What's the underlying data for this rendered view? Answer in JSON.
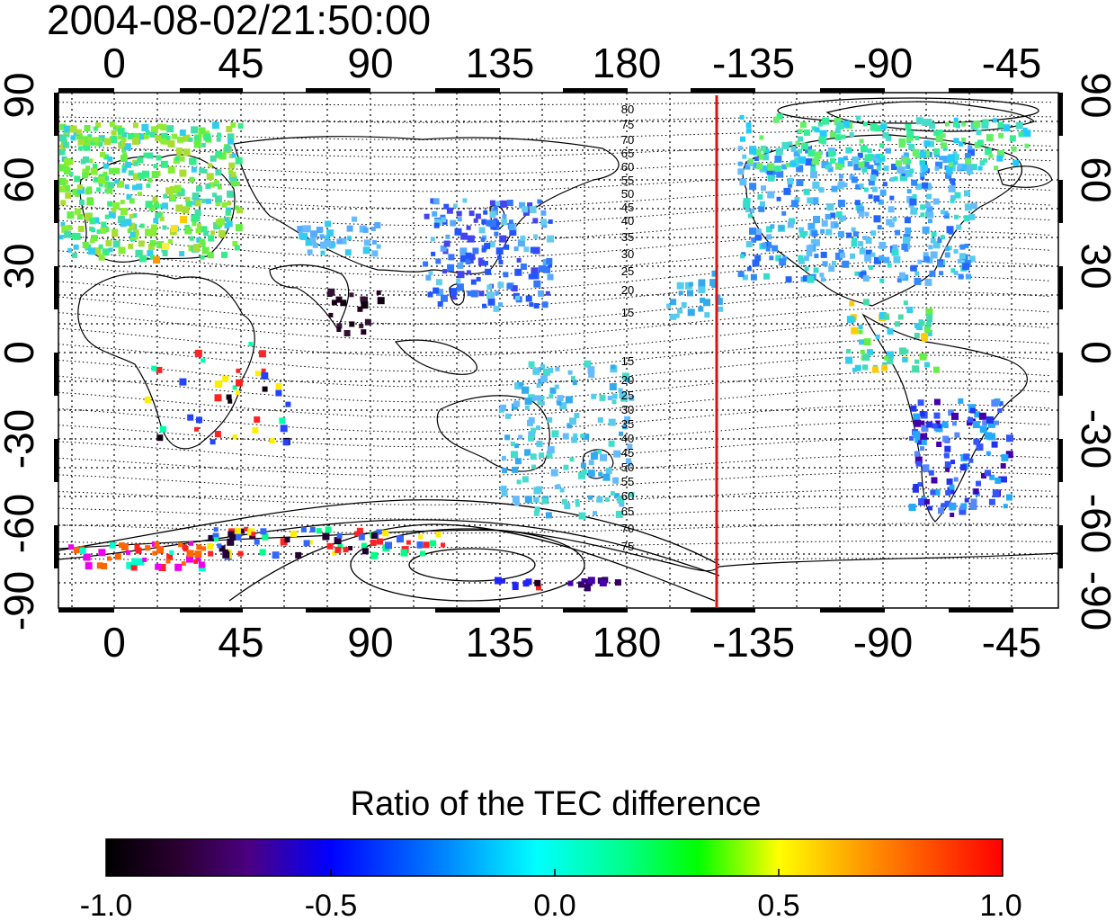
{
  "map": {
    "title": "2004-08-02/21:50:00",
    "top_lon_labels": [
      "0",
      "45",
      "90",
      "135",
      "180",
      "-135",
      "-90",
      "-45"
    ],
    "bottom_lon_labels": [
      "0",
      "45",
      "90",
      "135",
      "180",
      "-135",
      "-90",
      "-45"
    ],
    "left_lat_labels": [
      "90",
      "60",
      "30",
      "0",
      "-30",
      "-60",
      "-90"
    ],
    "right_lat_labels": [
      "90",
      "60",
      "30",
      "0",
      "-30",
      "-60",
      "-90"
    ],
    "contour_labels_north": [
      "80",
      "75",
      "70",
      "65",
      "60",
      "55",
      "50",
      "45",
      "40",
      "35",
      "30",
      "25",
      "20",
      "15"
    ],
    "contour_labels_south": [
      "15",
      "20",
      "25",
      "30",
      "35",
      "40",
      "45",
      "50",
      "55",
      "60",
      "65",
      "70",
      "75"
    ],
    "terminator_color": "#dd1111",
    "ocean_color": "#ffffff",
    "land_line_color": "#000000"
  },
  "colorbar": {
    "title": "Ratio of the TEC difference",
    "tick_labels": [
      "-1.0",
      "-0.5",
      "0.0",
      "0.5",
      "1.0"
    ],
    "colors": [
      "#000000",
      "#4b0082",
      "#0000ff",
      "#00ffff",
      "#00ff00",
      "#ffff00",
      "#ff0000"
    ]
  }
}
